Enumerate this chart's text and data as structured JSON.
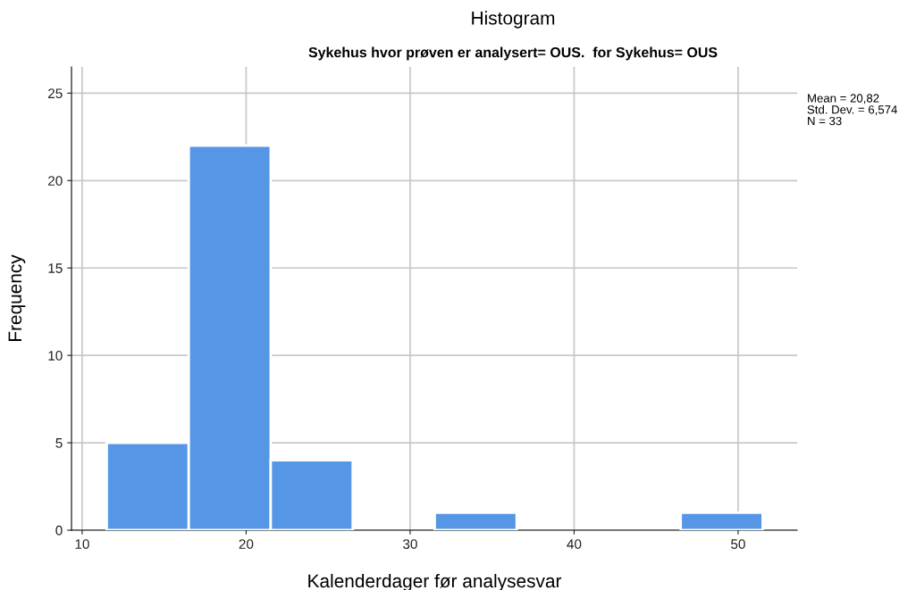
{
  "chart_data": {
    "type": "histogram",
    "title": "Histogram",
    "subtitle": "Sykehus hvor prøven er analysert= OUS.  for Sykehus= OUS",
    "xlabel": "Kalenderdager før analysesvar",
    "ylabel": "Frequency",
    "bins": [
      11.5,
      16.5,
      21.5,
      26.5,
      31.5,
      36.5,
      41.5,
      46.5,
      51.5
    ],
    "values": [
      5,
      22,
      4,
      0,
      1,
      0,
      0,
      1
    ],
    "color": "#5596e6",
    "xlim": [
      9.35,
      53.6
    ],
    "xticks": [
      10,
      20,
      30,
      40,
      50
    ],
    "ylim": [
      0,
      26.5
    ],
    "yticks": [
      0,
      5,
      10,
      15,
      20,
      25
    ],
    "grid": true,
    "annotations": [
      "Mean = 20,82\nStd. Dev. = 6,574\nN = 33"
    ]
  }
}
